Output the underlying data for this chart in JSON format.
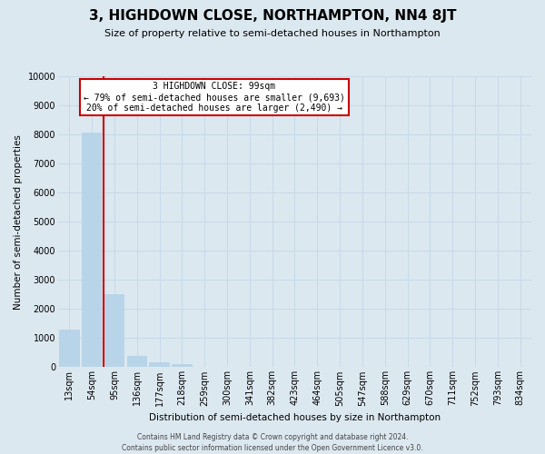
{
  "title": "3, HIGHDOWN CLOSE, NORTHAMPTON, NN4 8JT",
  "subtitle": "Size of property relative to semi-detached houses in Northampton",
  "xlabel": "Distribution of semi-detached houses by size in Northampton",
  "ylabel": "Number of semi-detached properties",
  "categories": [
    "13sqm",
    "54sqm",
    "95sqm",
    "136sqm",
    "177sqm",
    "218sqm",
    "259sqm",
    "300sqm",
    "341sqm",
    "382sqm",
    "423sqm",
    "464sqm",
    "505sqm",
    "547sqm",
    "588sqm",
    "629sqm",
    "670sqm",
    "711sqm",
    "752sqm",
    "793sqm",
    "834sqm"
  ],
  "values": [
    1300,
    8050,
    2520,
    400,
    160,
    100,
    0,
    0,
    0,
    0,
    0,
    0,
    0,
    0,
    0,
    0,
    0,
    0,
    0,
    0,
    0
  ],
  "bar_color": "#b8d4e8",
  "bar_edge_color": "#b8d4e8",
  "vline_color": "#cc0000",
  "annotation_line1": "3 HIGHDOWN CLOSE: 99sqm",
  "annotation_line2": "← 79% of semi-detached houses are smaller (9,693)",
  "annotation_line3": "20% of semi-detached houses are larger (2,490) →",
  "annotation_box_facecolor": "#ffffff",
  "annotation_box_edgecolor": "#cc0000",
  "ylim": [
    0,
    10000
  ],
  "yticks": [
    0,
    1000,
    2000,
    3000,
    4000,
    5000,
    6000,
    7000,
    8000,
    9000,
    10000
  ],
  "ytick_labels": [
    "0",
    "1000",
    "2000",
    "3000",
    "4000",
    "5000",
    "6000",
    "7000",
    "8000",
    "9000",
    "10000"
  ],
  "grid_color": "#c8d8e8",
  "plot_bg_color": "#dce8f0",
  "fig_bg_color": "#dce8f0",
  "footer_line1": "Contains HM Land Registry data © Crown copyright and database right 2024.",
  "footer_line2": "Contains public sector information licensed under the Open Government Licence v3.0.",
  "title_fontsize": 11,
  "subtitle_fontsize": 8,
  "axis_label_fontsize": 7.5,
  "tick_fontsize": 7,
  "footer_fontsize": 5.5
}
